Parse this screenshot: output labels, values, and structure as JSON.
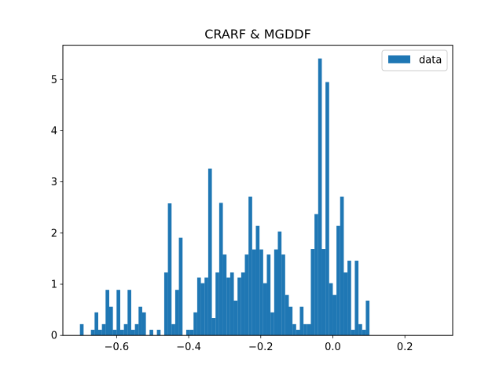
{
  "chart_data": {
    "type": "bar",
    "subtype": "histogram",
    "title": "CRARF & MGDDF",
    "xlabel": "",
    "ylabel": "",
    "xlim": [
      -0.7491,
      0.3326
    ],
    "ylim": [
      0,
      5.67
    ],
    "xticks": [
      -0.6,
      -0.4,
      -0.2,
      0.0,
      0.2
    ],
    "xtick_labels": [
      "−0.6",
      "−0.4",
      "−0.2",
      "0.0",
      "0.2"
    ],
    "yticks": [
      0,
      1,
      2,
      3,
      4,
      5
    ],
    "ytick_labels": [
      "0",
      "1",
      "2",
      "3",
      "4",
      "5"
    ],
    "grid": false,
    "legend": {
      "placement": "top-right",
      "entries": [
        "data"
      ]
    },
    "bin_start": -0.7018,
    "bin_width": 0.01017,
    "series": [
      {
        "name": "data",
        "color": "#1f77b4",
        "values": [
          0.22,
          0,
          0,
          0.11,
          0.45,
          0.11,
          0.22,
          0.89,
          0.56,
          0.11,
          0.89,
          0.11,
          0.22,
          0.89,
          0.11,
          0.22,
          0.56,
          0.45,
          0,
          0.11,
          0,
          0.11,
          0,
          1.23,
          2.58,
          0.22,
          0.89,
          1.91,
          0,
          0.11,
          0.11,
          0.45,
          1.13,
          1.02,
          1.13,
          3.26,
          0.34,
          1.23,
          2.59,
          1.58,
          1.13,
          1.23,
          0.68,
          1.13,
          1.23,
          1.58,
          2.71,
          1.68,
          2.14,
          1.68,
          1.02,
          1.58,
          0.45,
          1.68,
          2.03,
          1.58,
          0.79,
          0.56,
          0.22,
          0.11,
          0.56,
          0.22,
          0.22,
          1.69,
          2.37,
          5.41,
          1.69,
          4.95,
          1.02,
          0.79,
          2.14,
          2.71,
          1.23,
          1.46,
          0.11,
          1.46,
          0.22,
          0.11,
          0.68
        ]
      }
    ]
  }
}
